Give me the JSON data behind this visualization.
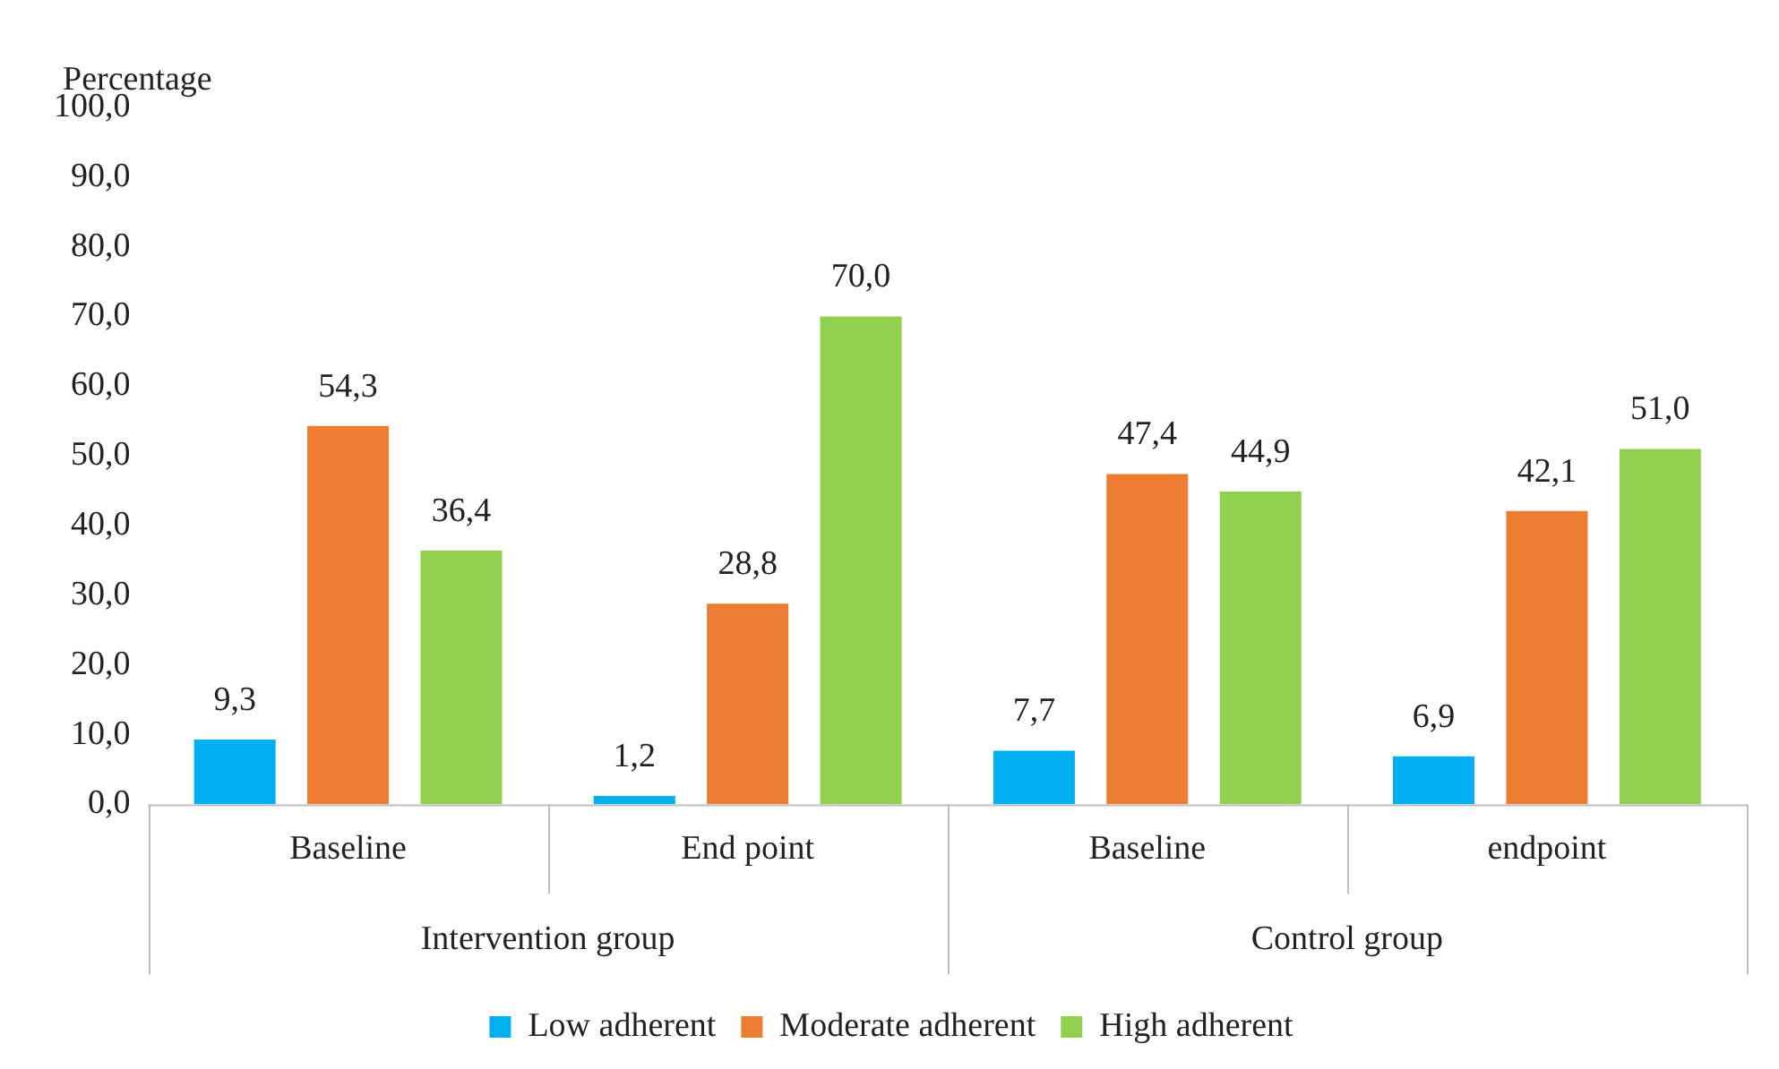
{
  "chart_data": {
    "type": "bar",
    "ylabel": "Percentage",
    "categories": [
      "Baseline",
      "End point",
      "Baseline",
      "endpoint"
    ],
    "annotations": [
      "Intervention group",
      "Control group"
    ],
    "series": [
      {
        "name": "Low adherent",
        "color": "#00b0f0",
        "values": [
          9.3,
          1.2,
          7.7,
          6.9
        ],
        "value_labels": [
          "9,3",
          "1,2",
          "7,7",
          "6,9"
        ]
      },
      {
        "name": "Moderate adherent",
        "color": "#ed7d31",
        "values": [
          54.3,
          28.8,
          47.4,
          42.1
        ],
        "value_labels": [
          "54,3",
          "28,8",
          "47,4",
          "42,1"
        ]
      },
      {
        "name": "High adherent",
        "color": "#92d050",
        "values": [
          36.4,
          70.0,
          44.9,
          51.0
        ],
        "value_labels": [
          "36,4",
          "70,0",
          "44,9",
          "51,0"
        ]
      }
    ],
    "ylim": [
      0,
      100
    ],
    "yticks": [
      {
        "value": 0,
        "label": "0,0"
      },
      {
        "value": 10,
        "label": "10,0"
      },
      {
        "value": 20,
        "label": "20,0"
      },
      {
        "value": 30,
        "label": "30,0"
      },
      {
        "value": 40,
        "label": "40,0"
      },
      {
        "value": 50,
        "label": "50,0"
      },
      {
        "value": 60,
        "label": "60,0"
      },
      {
        "value": 70,
        "label": "70,0"
      },
      {
        "value": 80,
        "label": "80,0"
      },
      {
        "value": 90,
        "label": "90,0"
      },
      {
        "value": 100,
        "label": "100,0"
      }
    ],
    "grid": false,
    "legend": "bottom"
  }
}
